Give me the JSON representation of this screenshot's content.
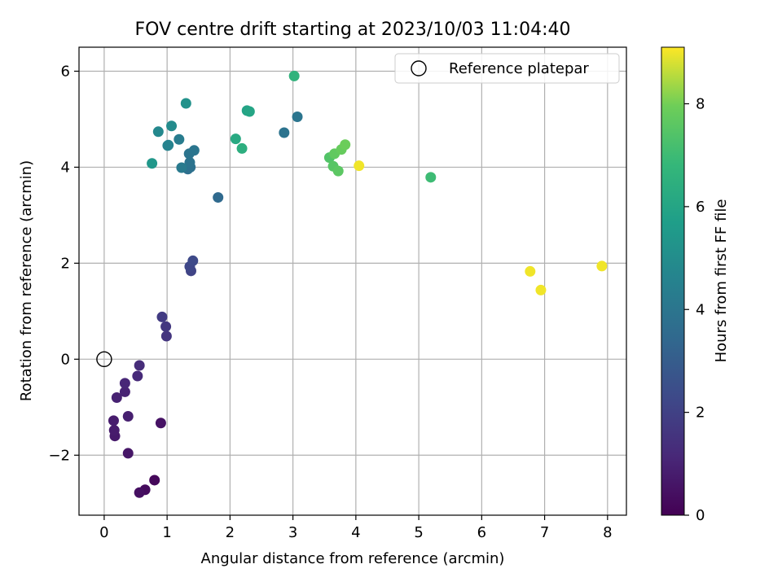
{
  "chart_data": {
    "type": "scatter",
    "title": "FOV centre drift starting at 2023/10/03 11:04:40",
    "xlabel": "Angular distance from reference (arcmin)",
    "ylabel": "Rotation from reference (arcmin)",
    "xlim": [
      -0.4,
      8.3
    ],
    "ylim": [
      -3.25,
      6.5
    ],
    "xticks": [
      0,
      1,
      2,
      3,
      4,
      5,
      6,
      7,
      8
    ],
    "yticks": [
      -2,
      0,
      2,
      4,
      6
    ],
    "xtick_labels": [
      "0",
      "1",
      "2",
      "3",
      "4",
      "5",
      "6",
      "7",
      "8"
    ],
    "ytick_labels": [
      "−2",
      "0",
      "2",
      "4",
      "6"
    ],
    "grid": true,
    "legend": {
      "position": "top-right",
      "entries": [
        "Reference platepar"
      ]
    },
    "reference_point": {
      "x": 0,
      "y": 0
    },
    "colorbar": {
      "label": "Hours from first FF file",
      "range": [
        0,
        9.1
      ],
      "ticks": [
        0,
        2,
        4,
        6,
        8
      ],
      "tick_labels": [
        "0",
        "2",
        "4",
        "6",
        "8"
      ],
      "colormap": "viridis"
    },
    "points": [
      {
        "x": 0.8,
        "y": -2.52,
        "c": 0.2
      },
      {
        "x": 0.65,
        "y": -2.72,
        "c": 0.3
      },
      {
        "x": 0.56,
        "y": -2.78,
        "c": 0.4
      },
      {
        "x": 0.9,
        "y": -1.33,
        "c": 0.5
      },
      {
        "x": 0.38,
        "y": -1.96,
        "c": 0.6
      },
      {
        "x": 0.17,
        "y": -1.6,
        "c": 0.7
      },
      {
        "x": 0.16,
        "y": -1.48,
        "c": 0.75
      },
      {
        "x": 0.15,
        "y": -1.28,
        "c": 0.8
      },
      {
        "x": 0.38,
        "y": -1.19,
        "c": 0.9
      },
      {
        "x": 0.2,
        "y": -0.8,
        "c": 0.95
      },
      {
        "x": 0.33,
        "y": -0.68,
        "c": 1.0
      },
      {
        "x": 0.33,
        "y": -0.5,
        "c": 1.1
      },
      {
        "x": 0.53,
        "y": -0.35,
        "c": 1.2
      },
      {
        "x": 0.56,
        "y": -0.13,
        "c": 1.3
      },
      {
        "x": 0.99,
        "y": 0.48,
        "c": 1.6
      },
      {
        "x": 0.98,
        "y": 0.68,
        "c": 1.7
      },
      {
        "x": 0.92,
        "y": 0.88,
        "c": 1.8
      },
      {
        "x": 1.38,
        "y": 1.84,
        "c": 2.1
      },
      {
        "x": 1.36,
        "y": 1.93,
        "c": 2.2
      },
      {
        "x": 1.41,
        "y": 2.05,
        "c": 2.3
      },
      {
        "x": 1.81,
        "y": 3.37,
        "c": 3.5
      },
      {
        "x": 1.33,
        "y": 3.96,
        "c": 3.7
      },
      {
        "x": 1.37,
        "y": 4.0,
        "c": 3.8
      },
      {
        "x": 1.36,
        "y": 4.1,
        "c": 3.9
      },
      {
        "x": 1.35,
        "y": 4.28,
        "c": 3.95
      },
      {
        "x": 1.43,
        "y": 4.35,
        "c": 4.0
      },
      {
        "x": 1.23,
        "y": 3.99,
        "c": 4.2
      },
      {
        "x": 1.19,
        "y": 4.58,
        "c": 4.3
      },
      {
        "x": 1.02,
        "y": 4.46,
        "c": 4.5
      },
      {
        "x": 1.01,
        "y": 4.45,
        "c": 4.6
      },
      {
        "x": 0.86,
        "y": 4.74,
        "c": 4.8
      },
      {
        "x": 1.07,
        "y": 4.86,
        "c": 4.9
      },
      {
        "x": 1.3,
        "y": 5.33,
        "c": 5.2
      },
      {
        "x": 0.76,
        "y": 4.08,
        "c": 5.4
      },
      {
        "x": 2.86,
        "y": 4.72,
        "c": 3.9
      },
      {
        "x": 3.07,
        "y": 5.05,
        "c": 4.0
      },
      {
        "x": 2.27,
        "y": 5.18,
        "c": 5.9
      },
      {
        "x": 2.31,
        "y": 5.16,
        "c": 6.0
      },
      {
        "x": 2.09,
        "y": 4.59,
        "c": 6.2
      },
      {
        "x": 2.19,
        "y": 4.39,
        "c": 6.4
      },
      {
        "x": 3.02,
        "y": 5.9,
        "c": 6.6
      },
      {
        "x": 5.19,
        "y": 3.79,
        "c": 7.0
      },
      {
        "x": 3.58,
        "y": 4.2,
        "c": 7.4
      },
      {
        "x": 3.64,
        "y": 4.02,
        "c": 7.5
      },
      {
        "x": 3.72,
        "y": 3.92,
        "c": 7.6
      },
      {
        "x": 3.66,
        "y": 4.28,
        "c": 7.7
      },
      {
        "x": 3.77,
        "y": 4.37,
        "c": 7.8
      },
      {
        "x": 3.83,
        "y": 4.47,
        "c": 7.9
      },
      {
        "x": 4.05,
        "y": 4.03,
        "c": 9.0
      },
      {
        "x": 6.77,
        "y": 1.83,
        "c": 9.0
      },
      {
        "x": 6.94,
        "y": 1.44,
        "c": 9.0
      },
      {
        "x": 7.91,
        "y": 1.94,
        "c": 9.0
      }
    ]
  }
}
